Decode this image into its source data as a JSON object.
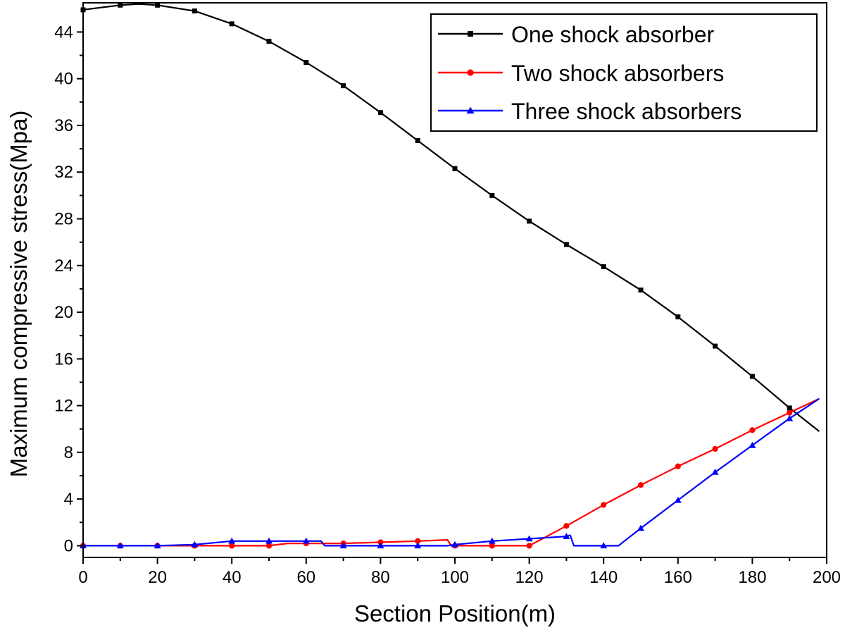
{
  "chart_data": {
    "type": "line",
    "title": "",
    "xlabel": "Section Position(m)",
    "ylabel": "Maximum compressive stress(Mpa)",
    "xlim": [
      0,
      200
    ],
    "ylim": [
      -1,
      46.5
    ],
    "x_ticks": [
      0,
      20,
      40,
      60,
      80,
      100,
      120,
      140,
      160,
      180,
      200
    ],
    "y_ticks": [
      0,
      4,
      8,
      12,
      16,
      20,
      24,
      28,
      32,
      36,
      40,
      44
    ],
    "grid": false,
    "legend_position": "top-right",
    "series": [
      {
        "name": "One shock absorber",
        "color": "#000000",
        "marker": "square",
        "line": [
          [
            0,
            45.9
          ],
          [
            10,
            46.3
          ],
          [
            15,
            46.4
          ],
          [
            20,
            46.3
          ],
          [
            30,
            45.8
          ],
          [
            40,
            44.7
          ],
          [
            50,
            43.2
          ],
          [
            60,
            41.4
          ],
          [
            70,
            39.4
          ],
          [
            80,
            37.1
          ],
          [
            90,
            34.7
          ],
          [
            100,
            32.3
          ],
          [
            110,
            30.0
          ],
          [
            120,
            27.8
          ],
          [
            130,
            25.8
          ],
          [
            140,
            23.9
          ],
          [
            150,
            21.9
          ],
          [
            160,
            19.6
          ],
          [
            170,
            17.1
          ],
          [
            180,
            14.5
          ],
          [
            190,
            11.8
          ],
          [
            198,
            9.8
          ]
        ],
        "markers": [
          [
            0,
            45.9
          ],
          [
            10,
            46.3
          ],
          [
            20,
            46.3
          ],
          [
            30,
            45.8
          ],
          [
            40,
            44.7
          ],
          [
            50,
            43.2
          ],
          [
            60,
            41.4
          ],
          [
            70,
            39.4
          ],
          [
            80,
            37.1
          ],
          [
            90,
            34.7
          ],
          [
            100,
            32.3
          ],
          [
            110,
            30.0
          ],
          [
            120,
            27.8
          ],
          [
            130,
            25.8
          ],
          [
            140,
            23.9
          ],
          [
            150,
            21.9
          ],
          [
            160,
            19.6
          ],
          [
            170,
            17.1
          ],
          [
            180,
            14.5
          ],
          [
            190,
            11.8
          ]
        ]
      },
      {
        "name": "Two shock absorbers",
        "color": "#ff0000",
        "marker": "circle",
        "line": [
          [
            0,
            0
          ],
          [
            10,
            0
          ],
          [
            20,
            0
          ],
          [
            30,
            0
          ],
          [
            40,
            0
          ],
          [
            50,
            0
          ],
          [
            55,
            0.2
          ],
          [
            60,
            0.2
          ],
          [
            70,
            0.2
          ],
          [
            80,
            0.3
          ],
          [
            90,
            0.4
          ],
          [
            98,
            0.5
          ],
          [
            99,
            0
          ],
          [
            100,
            0
          ],
          [
            110,
            0
          ],
          [
            120,
            0
          ],
          [
            130,
            1.7
          ],
          [
            140,
            3.5
          ],
          [
            150,
            5.2
          ],
          [
            160,
            6.8
          ],
          [
            170,
            8.3
          ],
          [
            180,
            9.9
          ],
          [
            190,
            11.4
          ],
          [
            198,
            12.6
          ]
        ],
        "markers": [
          [
            0,
            0
          ],
          [
            10,
            0
          ],
          [
            20,
            0
          ],
          [
            30,
            0
          ],
          [
            40,
            0
          ],
          [
            50,
            0
          ],
          [
            60,
            0.2
          ],
          [
            70,
            0.2
          ],
          [
            80,
            0.3
          ],
          [
            90,
            0.4
          ],
          [
            100,
            0
          ],
          [
            110,
            0
          ],
          [
            120,
            0
          ],
          [
            130,
            1.7
          ],
          [
            140,
            3.5
          ],
          [
            150,
            5.2
          ],
          [
            160,
            6.8
          ],
          [
            170,
            8.3
          ],
          [
            180,
            9.9
          ],
          [
            190,
            11.4
          ]
        ]
      },
      {
        "name": "Three shock absorbers",
        "color": "#0000ff",
        "marker": "triangle",
        "line": [
          [
            0,
            0
          ],
          [
            10,
            0
          ],
          [
            20,
            0
          ],
          [
            30,
            0.1
          ],
          [
            40,
            0.4
          ],
          [
            50,
            0.4
          ],
          [
            60,
            0.4
          ],
          [
            64,
            0.4
          ],
          [
            65,
            0
          ],
          [
            70,
            0
          ],
          [
            80,
            0
          ],
          [
            90,
            0
          ],
          [
            98,
            0
          ],
          [
            100,
            0.1
          ],
          [
            110,
            0.4
          ],
          [
            120,
            0.6
          ],
          [
            130,
            0.8
          ],
          [
            131,
            0.9
          ],
          [
            132,
            0
          ],
          [
            140,
            0
          ],
          [
            144,
            0
          ],
          [
            150,
            1.5
          ],
          [
            160,
            3.9
          ],
          [
            170,
            6.3
          ],
          [
            180,
            8.6
          ],
          [
            190,
            10.9
          ],
          [
            198,
            12.6
          ]
        ],
        "markers": [
          [
            0,
            0
          ],
          [
            10,
            0
          ],
          [
            20,
            0
          ],
          [
            30,
            0.1
          ],
          [
            40,
            0.4
          ],
          [
            50,
            0.4
          ],
          [
            60,
            0.4
          ],
          [
            70,
            0
          ],
          [
            80,
            0
          ],
          [
            90,
            0
          ],
          [
            100,
            0.1
          ],
          [
            110,
            0.4
          ],
          [
            120,
            0.6
          ],
          [
            130,
            0.8
          ],
          [
            140,
            0
          ],
          [
            150,
            1.5
          ],
          [
            160,
            3.9
          ],
          [
            170,
            6.3
          ],
          [
            180,
            8.6
          ],
          [
            190,
            10.9
          ]
        ]
      }
    ]
  }
}
